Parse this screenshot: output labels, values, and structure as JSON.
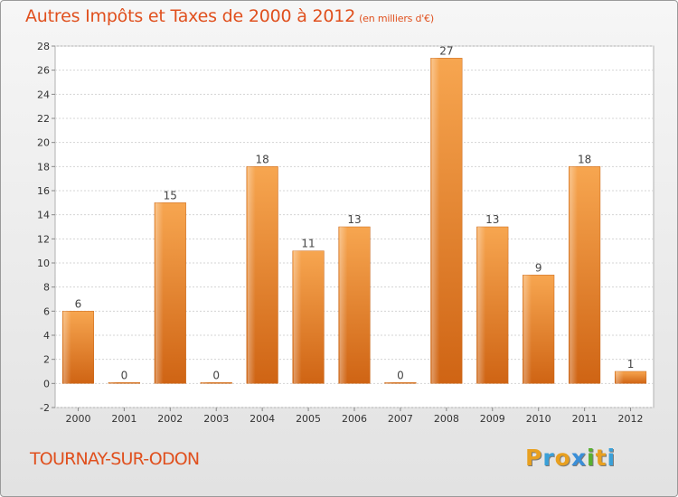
{
  "chart_data": {
    "type": "bar",
    "title": "Autres Impôts et Taxes de 2000 à 2012",
    "unit_note": "(en milliers d'€)",
    "xlabel": "",
    "ylabel": "",
    "categories": [
      "2000",
      "2001",
      "2002",
      "2003",
      "2004",
      "2005",
      "2006",
      "2007",
      "2008",
      "2009",
      "2010",
      "2011",
      "2012"
    ],
    "values": [
      6,
      0,
      15,
      0,
      18,
      11,
      13,
      0,
      27,
      13,
      9,
      18,
      1
    ],
    "data_labels": [
      "6",
      "0",
      "15",
      "0",
      "18",
      "11",
      "13",
      "0",
      "27",
      "13",
      "9",
      "18",
      "1"
    ],
    "ylim": [
      -2,
      28
    ],
    "yticks": [
      -2,
      0,
      2,
      4,
      6,
      8,
      10,
      12,
      14,
      16,
      18,
      20,
      22,
      24,
      26,
      28
    ],
    "grid": "horizontal",
    "legend": "none",
    "bar_color": "#f08a30"
  },
  "place_name": "TOURNAY-SUR-ODON",
  "brand": {
    "letters": [
      "P",
      "r",
      "o",
      "x",
      "i",
      "t",
      "i"
    ],
    "colors": [
      "#e8a020",
      "#3aa0d8",
      "#e8a020",
      "#3a8fd8",
      "#58b030",
      "#e8a020",
      "#3aa0d8"
    ]
  }
}
